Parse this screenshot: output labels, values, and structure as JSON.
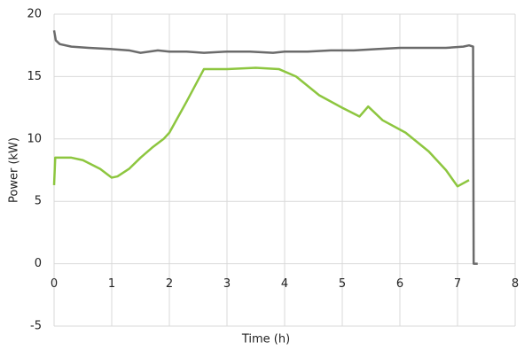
{
  "chart_data": {
    "type": "line",
    "xlabel": "Time (h)",
    "ylabel": "Power (kW)",
    "xlim": [
      0,
      8
    ],
    "xticks": [
      0,
      1,
      2,
      3,
      4,
      5,
      6,
      7,
      8
    ],
    "ylim": [
      -5,
      20
    ],
    "yticks": [
      -5,
      0,
      5,
      10,
      15,
      20
    ],
    "grid": true,
    "series": [
      {
        "color": "#6b6b6b",
        "x": [
          0,
          0.03,
          0.1,
          0.3,
          0.6,
          1.0,
          1.3,
          1.5,
          1.8,
          2.0,
          2.3,
          2.6,
          3.0,
          3.4,
          3.8,
          4.0,
          4.4,
          4.8,
          5.2,
          5.6,
          6.0,
          6.4,
          6.8,
          7.1,
          7.2,
          7.27,
          7.28,
          7.35
        ],
        "values": [
          18.7,
          17.9,
          17.6,
          17.4,
          17.3,
          17.2,
          17.1,
          16.9,
          17.1,
          17.0,
          17.0,
          16.9,
          17.0,
          17.0,
          16.9,
          17.0,
          17.0,
          17.1,
          17.1,
          17.2,
          17.3,
          17.3,
          17.3,
          17.4,
          17.5,
          17.4,
          0,
          0
        ]
      },
      {
        "color": "#8dc63f",
        "x": [
          0,
          0.02,
          0.3,
          0.5,
          0.8,
          1.0,
          1.1,
          1.3,
          1.5,
          1.7,
          1.9,
          2.0,
          2.3,
          2.6,
          3.0,
          3.5,
          3.9,
          4.2,
          4.6,
          5.0,
          5.3,
          5.45,
          5.7,
          6.1,
          6.5,
          6.8,
          7.0,
          7.2
        ],
        "values": [
          6.3,
          8.5,
          8.5,
          8.3,
          7.6,
          6.9,
          7.0,
          7.6,
          8.5,
          9.3,
          10.0,
          10.5,
          13.0,
          15.6,
          15.6,
          15.7,
          15.6,
          15.0,
          13.5,
          12.5,
          11.8,
          12.6,
          11.5,
          10.5,
          9.0,
          7.5,
          6.2,
          6.7
        ]
      }
    ]
  }
}
